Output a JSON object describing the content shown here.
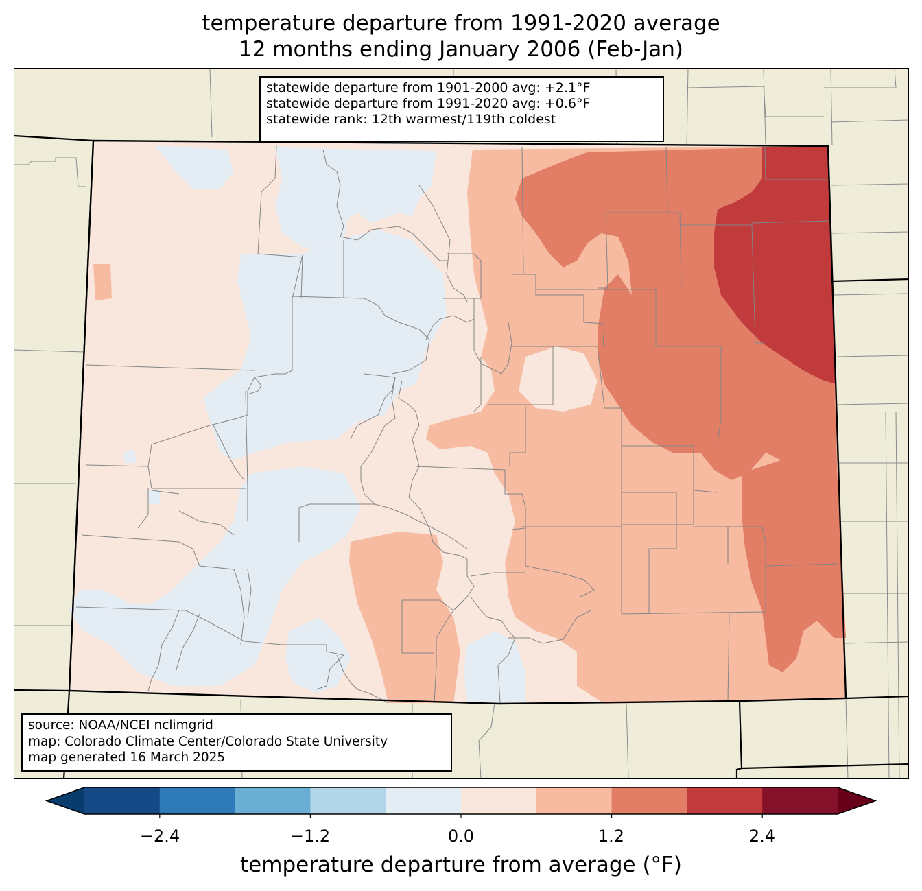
{
  "title": {
    "line1": "temperature departure from 1991-2020 average",
    "line2": "12 months ending January 2006 (Feb-Jan)"
  },
  "stats": {
    "line1": "statewide departure from 1901-2000 avg: +2.1°F",
    "line2": "statewide departure from 1991-2020 avg: +0.6°F",
    "line3": "statewide rank: 12th warmest/119th coldest"
  },
  "source": {
    "line1": "source: NOAA/NCEI nclimgrid",
    "line2": "map: Colorado Climate Center/Colorado State University",
    "line3": "map generated 16 March 2025"
  },
  "colorbar": {
    "label": "temperature departure from average (°F)",
    "ticks": [
      "−2.4",
      "−1.2",
      "0.0",
      "1.2",
      "2.4"
    ],
    "tick_values": [
      -2.4,
      -1.2,
      0.0,
      1.2,
      2.4
    ],
    "range": [
      -3.0,
      3.0
    ],
    "extend": "both",
    "colors": [
      "#083c6c",
      "#154a87",
      "#2f7ab8",
      "#6aaed4",
      "#b2d5e8",
      "#e4ecf4",
      "#f9e6dc",
      "#f6bba1",
      "#e27e66",
      "#c13a3c",
      "#86112a",
      "#690019"
    ]
  },
  "map_colors": {
    "background": "#efedda",
    "neg_0_6": "#e4ecf4",
    "pos_0_6": "#f9e6dc",
    "pos_0_6_1_2": "#f6bba1",
    "pos_1_2_1_8": "#e27e66",
    "pos_1_8_2_4": "#c13a3c"
  }
}
